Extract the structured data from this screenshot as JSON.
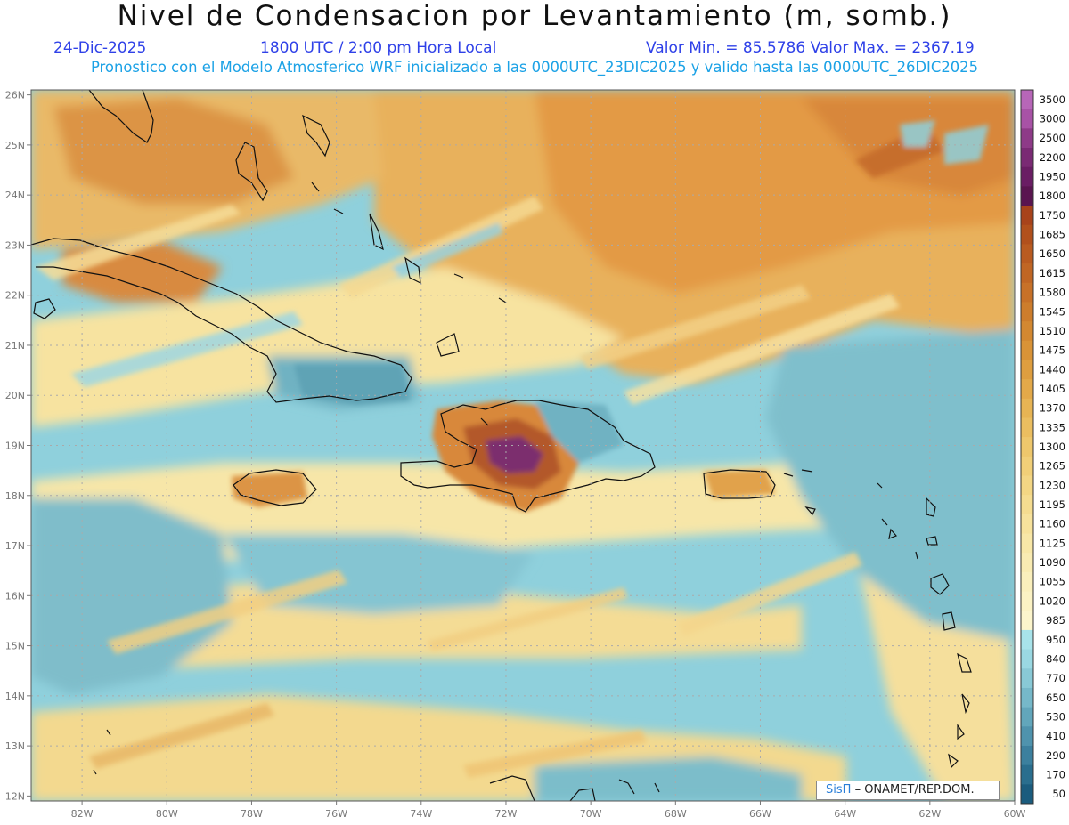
{
  "header": {
    "title": "Nivel de Condensacion por Levantamiento (m, somb.)",
    "date": "24-Dic-2025",
    "time": "1800 UTC / 2:00 pm Hora Local",
    "range": "Valor Min. = 85.5786   Valor Max. = 2367.19",
    "model_info": "Pronostico con el Modelo Atmosferico WRF inicializado a las 0000UTC_23DIC2025 y valido hasta las  0000UTC_26DIC2025"
  },
  "map": {
    "lat_labels": [
      "26N",
      "25N",
      "24N",
      "23N",
      "22N",
      "21N",
      "20N",
      "19N",
      "18N",
      "17N",
      "16N",
      "15N",
      "14N",
      "13N",
      "12N"
    ],
    "lon_labels": [
      "82W",
      "80W",
      "78W",
      "76W",
      "74W",
      "72W",
      "70W",
      "68W",
      "66W",
      "64W",
      "62W",
      "60W"
    ],
    "lat_values": [
      26,
      25,
      24,
      23,
      22,
      21,
      20,
      19,
      18,
      17,
      16,
      15,
      14,
      13,
      12
    ],
    "lon_values": [
      -82,
      -80,
      -78,
      -76,
      -74,
      -72,
      -70,
      -68,
      -66,
      -64,
      -62,
      -60
    ],
    "extent": {
      "lon_min": -83.2,
      "lon_max": -60.0,
      "lat_min": 11.9,
      "lat_max": 26.1
    }
  },
  "colorbar": {
    "levels": [
      "3500",
      "3000",
      "2500",
      "2200",
      "1950",
      "1800",
      "1750",
      "1685",
      "1650",
      "1615",
      "1580",
      "1545",
      "1510",
      "1475",
      "1440",
      "1405",
      "1370",
      "1335",
      "1300",
      "1265",
      "1230",
      "1195",
      "1160",
      "1125",
      "1090",
      "1055",
      "1020",
      "985",
      "950",
      "840",
      "770",
      "650",
      "530",
      "410",
      "290",
      "170",
      "50"
    ],
    "colors": [
      "#b766b8",
      "#a852a6",
      "#8e3a88",
      "#7a2a74",
      "#6a1d64",
      "#5a1550",
      "#a8431b",
      "#b1501c",
      "#b95b20",
      "#c06624",
      "#c77128",
      "#cd7d2c",
      "#d38831",
      "#d99337",
      "#de9e3f",
      "#e3a949",
      "#e7b454",
      "#ebbe60",
      "#eec76c",
      "#f1cf78",
      "#f3d684",
      "#f5dc90",
      "#f7e29c",
      "#f8e7a7",
      "#f9ebb2",
      "#faefbc",
      "#fbf2c4",
      "#fcf5cc",
      "#a8e3ea",
      "#9ad8e2",
      "#89c9d6",
      "#76b8c9",
      "#62a6bb",
      "#4f93ad",
      "#3c809e",
      "#2a6e8e",
      "#1b5c7e"
    ]
  },
  "credit": {
    "brand": "SisΠ",
    "text": "– ONAMET/REP.DOM."
  }
}
